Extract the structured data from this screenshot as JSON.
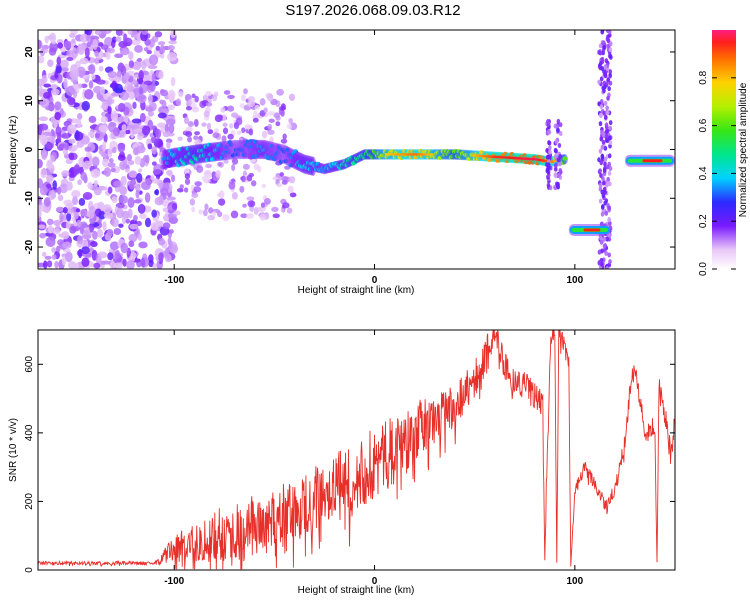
{
  "header": {
    "title": "S197.2026.068.09.03.R12"
  },
  "chart_data": [
    {
      "type": "heatmap",
      "name": "spectrogram",
      "title": "S197.2026.068.09.03.R12",
      "xlabel": "Height of straight line (km)",
      "ylabel": "Frequency (Hz)",
      "xlim": [
        -168,
        150
      ],
      "ylim": [
        -24.5,
        24.5
      ],
      "xticks": [
        -100,
        0,
        100
      ],
      "yticks": [
        20,
        10,
        0,
        -10,
        -20
      ],
      "grid": false,
      "colorbar": {
        "label": "Normalized spectral amplitude",
        "range": [
          0.0,
          1.0
        ],
        "ticks": [
          0.0,
          0.2,
          0.4,
          0.6,
          0.8
        ],
        "tick_labels": [
          "0.0",
          "0.2",
          "0.4",
          "0.6",
          "0.8"
        ]
      },
      "signal_track": {
        "x": [
          -105,
          -90,
          -70,
          -55,
          -45,
          -35,
          -25,
          -15,
          -5,
          5,
          20,
          40,
          60,
          80,
          88,
          95
        ],
        "y": [
          -2,
          -1,
          0,
          0,
          -1,
          -3,
          -4,
          -3,
          -1,
          -1,
          -1,
          -1,
          -1.5,
          -2,
          -2.5,
          -2
        ],
        "amplitude": [
          0.35,
          0.45,
          0.3,
          0.35,
          0.3,
          0.4,
          0.35,
          0.45,
          0.5,
          0.7,
          0.8,
          0.6,
          0.85,
          0.9,
          0.8,
          0.6
        ]
      },
      "segments": [
        {
          "x": [
            97,
            118
          ],
          "y": -16.5,
          "amplitude": 0.9
        },
        {
          "x": [
            125,
            150
          ],
          "y": -2.3,
          "amplitude": 0.9
        }
      ],
      "noise_band_x": [
        -168,
        -100
      ]
    },
    {
      "type": "line",
      "name": "snr",
      "xlabel": "Height of straight line (km)",
      "ylabel": "SNR (10 * v/v)",
      "xlim": [
        -168,
        150
      ],
      "ylim": [
        0,
        700
      ],
      "xticks": [
        -100,
        0,
        100
      ],
      "yticks": [
        0,
        200,
        400,
        600
      ],
      "color": "#e8302a",
      "series": [
        {
          "name": "SNR",
          "x": [
            -168,
            -150,
            -130,
            -110,
            -100,
            -90,
            -80,
            -70,
            -60,
            -50,
            -40,
            -30,
            -20,
            -10,
            0,
            10,
            20,
            30,
            40,
            50,
            55,
            60,
            65,
            70,
            75,
            80,
            84,
            85,
            86,
            88,
            90,
            91,
            92,
            95,
            97,
            98,
            100,
            105,
            110,
            115,
            120,
            125,
            128,
            130,
            135,
            140,
            141,
            142,
            145,
            148,
            150
          ],
          "y": [
            20,
            20,
            20,
            20,
            60,
            80,
            100,
            110,
            130,
            140,
            180,
            200,
            230,
            270,
            310,
            350,
            400,
            440,
            480,
            560,
            620,
            700,
            600,
            550,
            540,
            510,
            480,
            20,
            300,
            680,
            700,
            20,
            690,
            650,
            600,
            10,
            230,
            300,
            250,
            190,
            230,
            380,
            550,
            580,
            400,
            420,
            20,
            550,
            450,
            350,
            450
          ],
          "noise": [
            5,
            5,
            5,
            5,
            40,
            60,
            80,
            80,
            90,
            90,
            100,
            100,
            110,
            110,
            110,
            100,
            90,
            80,
            70,
            60,
            50,
            40,
            40,
            40,
            40,
            40,
            40,
            10,
            40,
            30,
            30,
            10,
            30,
            30,
            30,
            5,
            20,
            20,
            20,
            20,
            20,
            30,
            30,
            30,
            30,
            30,
            10,
            30,
            30,
            30,
            30
          ]
        }
      ]
    }
  ],
  "colors": {
    "snr_line": "#e8302a",
    "axis": "#000000",
    "background": "#ffffff"
  }
}
